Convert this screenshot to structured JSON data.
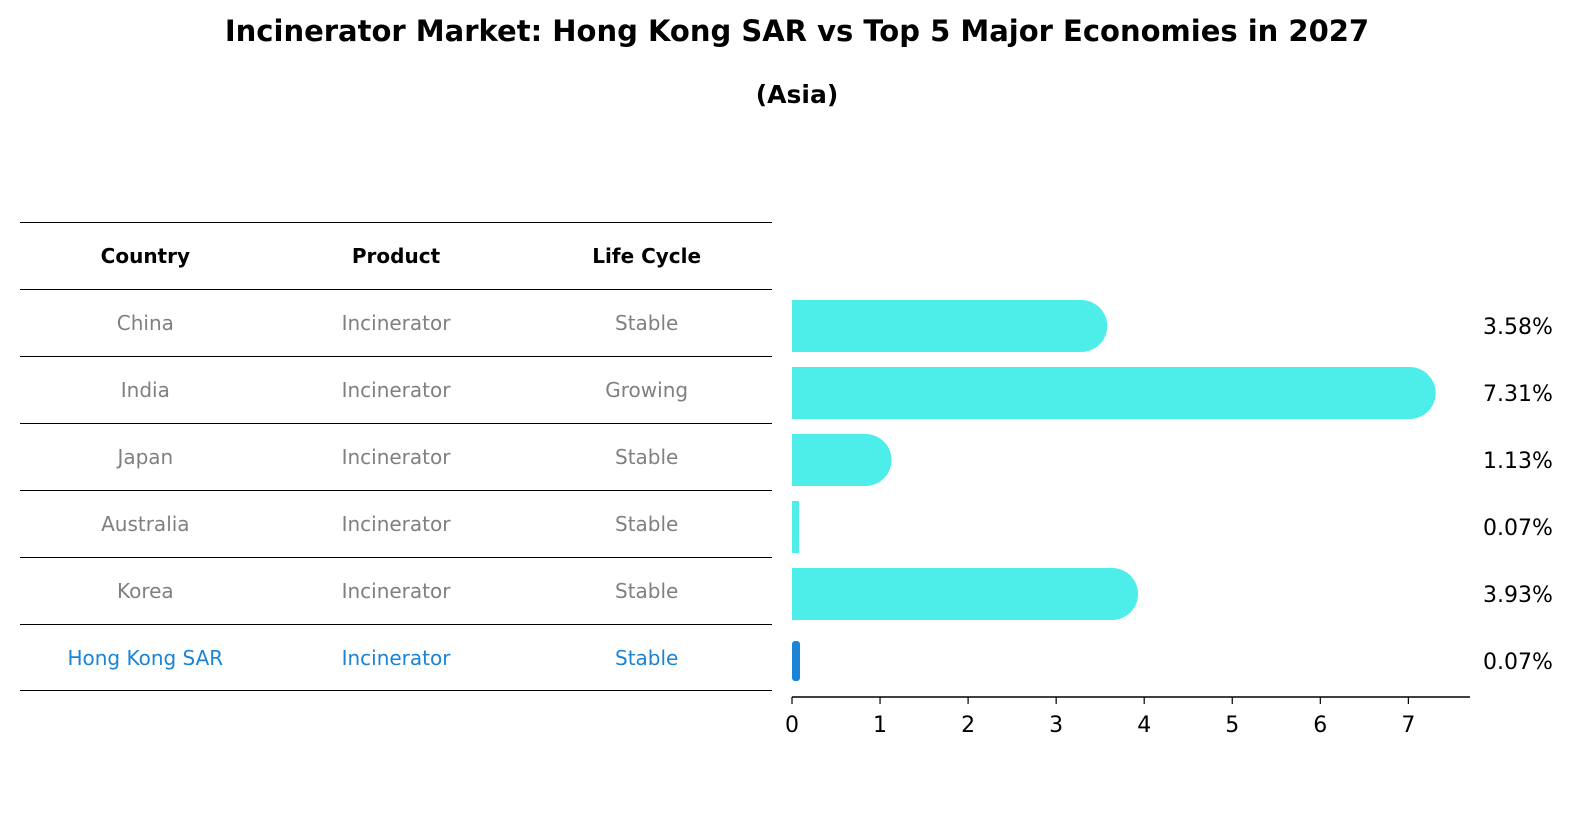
{
  "title": "Incinerator Market: Hong Kong SAR vs Top 5 Major Economies in 2027",
  "subtitle": "(Asia)",
  "table": {
    "headers": [
      "Country",
      "Product",
      "Life Cycle"
    ],
    "rows": [
      [
        "China",
        "Incinerator",
        "Stable"
      ],
      [
        "India",
        "Incinerator",
        "Growing"
      ],
      [
        "Japan",
        "Incinerator",
        "Stable"
      ],
      [
        "Australia",
        "Incinerator",
        "Stable"
      ],
      [
        "Korea",
        "Incinerator",
        "Stable"
      ],
      [
        "Hong Kong SAR",
        "Incinerator",
        "Stable"
      ]
    ],
    "highlight_row": 5
  },
  "colors": {
    "bar": "#4deeea",
    "highlight": "#1b84d6",
    "muted_text": "#808080"
  },
  "chart_data": {
    "type": "bar",
    "orientation": "horizontal",
    "categories": [
      "China",
      "India",
      "Japan",
      "Australia",
      "Korea",
      "Hong Kong SAR"
    ],
    "values": [
      3.58,
      7.31,
      1.13,
      0.07,
      3.93,
      0.07
    ],
    "value_labels": [
      "3.58%",
      "7.31%",
      "1.13%",
      "0.07%",
      "3.93%",
      "0.07%"
    ],
    "xlim": [
      0,
      7.7
    ],
    "xticks": [
      0,
      1,
      2,
      3,
      4,
      5,
      6,
      7
    ],
    "grid": false
  }
}
